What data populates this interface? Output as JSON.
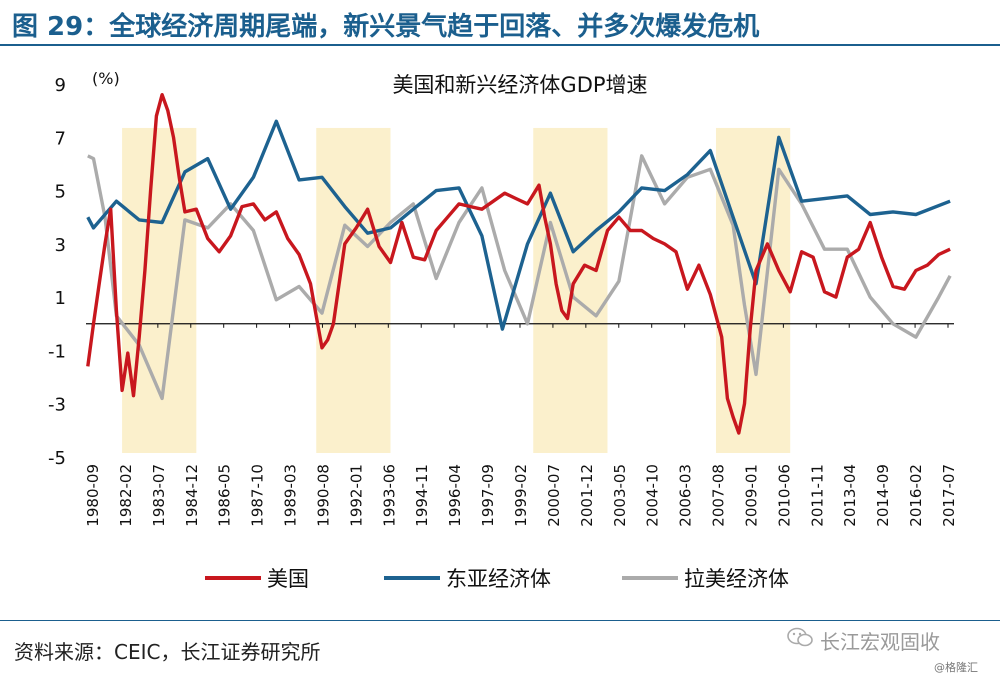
{
  "figure": {
    "title": "图 29：全球经济周期尾端，新兴景气趋于回落、并多次爆发危机",
    "source": "资料来源：CEIC，长江证券研究所",
    "watermark": "长江宏观固收",
    "watermark_sub": "@格隆汇"
  },
  "colors": {
    "title": "#1b5f8e",
    "us": "#c8171e",
    "east_asia": "#1d6290",
    "latam": "#ababab",
    "shade": "#fbf0cc"
  },
  "chart_data": {
    "type": "line",
    "title": "美国和新兴经济体GDP增速",
    "ylabel": "(%)",
    "ylim": [
      -5,
      9
    ],
    "yticks": [
      -5,
      -3,
      -1,
      1,
      3,
      5,
      7,
      9
    ],
    "xlim": [
      1980.67,
      2018.67
    ],
    "xticks": [
      "1980-09",
      "1982-02",
      "1983-07",
      "1984-12",
      "1986-05",
      "1987-10",
      "1989-03",
      "1990-08",
      "1992-01",
      "1993-06",
      "1994-11",
      "1996-04",
      "1997-09",
      "1999-02",
      "2000-07",
      "2001-12",
      "2003-05",
      "2004-10",
      "2006-03",
      "2007-08",
      "2009-01",
      "2010-06",
      "2011-11",
      "2013-04",
      "2014-09",
      "2016-02",
      "2017-07"
    ],
    "legend": {
      "position": "bottom"
    },
    "grid": false,
    "shaded_periods": [
      [
        1982.25,
        1985.5
      ],
      [
        1990.75,
        1994.0
      ],
      [
        2000.25,
        2003.5
      ],
      [
        2008.25,
        2011.5
      ]
    ],
    "series": [
      {
        "name": "美国",
        "color": "#c8171e",
        "points": [
          [
            1980.75,
            -1.6
          ],
          [
            1981.0,
            0.0
          ],
          [
            1981.25,
            1.5
          ],
          [
            1981.5,
            3.0
          ],
          [
            1981.75,
            4.3
          ],
          [
            1982.0,
            0.5
          ],
          [
            1982.25,
            -2.5
          ],
          [
            1982.5,
            -1.1
          ],
          [
            1982.75,
            -2.7
          ],
          [
            1983.0,
            -0.5
          ],
          [
            1983.25,
            2.0
          ],
          [
            1983.5,
            5.0
          ],
          [
            1983.75,
            7.8
          ],
          [
            1984.0,
            8.6
          ],
          [
            1984.25,
            8.0
          ],
          [
            1984.5,
            7.0
          ],
          [
            1984.75,
            5.5
          ],
          [
            1985.0,
            4.2
          ],
          [
            1985.5,
            4.3
          ],
          [
            1986.0,
            3.2
          ],
          [
            1986.5,
            2.7
          ],
          [
            1987.0,
            3.3
          ],
          [
            1987.5,
            4.4
          ],
          [
            1988.0,
            4.5
          ],
          [
            1988.5,
            3.9
          ],
          [
            1989.0,
            4.2
          ],
          [
            1989.5,
            3.2
          ],
          [
            1990.0,
            2.6
          ],
          [
            1990.5,
            1.5
          ],
          [
            1990.75,
            0.3
          ],
          [
            1991.0,
            -0.9
          ],
          [
            1991.25,
            -0.6
          ],
          [
            1991.5,
            0.0
          ],
          [
            1992.0,
            3.0
          ],
          [
            1992.5,
            3.6
          ],
          [
            1993.0,
            4.3
          ],
          [
            1993.5,
            2.9
          ],
          [
            1994.0,
            2.3
          ],
          [
            1994.5,
            3.8
          ],
          [
            1995.0,
            2.5
          ],
          [
            1995.5,
            2.4
          ],
          [
            1996.0,
            3.5
          ],
          [
            1996.5,
            4.0
          ],
          [
            1997.0,
            4.5
          ],
          [
            1997.5,
            4.4
          ],
          [
            1998.0,
            4.3
          ],
          [
            1998.5,
            4.6
          ],
          [
            1999.0,
            4.9
          ],
          [
            1999.5,
            4.7
          ],
          [
            2000.0,
            4.5
          ],
          [
            2000.5,
            5.2
          ],
          [
            2000.75,
            4.0
          ],
          [
            2001.0,
            3.0
          ],
          [
            2001.25,
            1.5
          ],
          [
            2001.5,
            0.5
          ],
          [
            2001.75,
            0.2
          ],
          [
            2002.0,
            1.5
          ],
          [
            2002.5,
            2.2
          ],
          [
            2003.0,
            2.0
          ],
          [
            2003.5,
            3.5
          ],
          [
            2004.0,
            4.0
          ],
          [
            2004.5,
            3.5
          ],
          [
            2005.0,
            3.5
          ],
          [
            2005.5,
            3.2
          ],
          [
            2006.0,
            3.0
          ],
          [
            2006.5,
            2.7
          ],
          [
            2007.0,
            1.3
          ],
          [
            2007.5,
            2.2
          ],
          [
            2008.0,
            1.1
          ],
          [
            2008.5,
            -0.5
          ],
          [
            2008.75,
            -2.8
          ],
          [
            2009.0,
            -3.5
          ],
          [
            2009.25,
            -4.1
          ],
          [
            2009.5,
            -3.0
          ],
          [
            2009.75,
            -0.2
          ],
          [
            2010.0,
            2.0
          ],
          [
            2010.5,
            3.0
          ],
          [
            2011.0,
            2.0
          ],
          [
            2011.5,
            1.2
          ],
          [
            2012.0,
            2.7
          ],
          [
            2012.5,
            2.5
          ],
          [
            2013.0,
            1.2
          ],
          [
            2013.5,
            1.0
          ],
          [
            2014.0,
            2.5
          ],
          [
            2014.5,
            2.8
          ],
          [
            2015.0,
            3.8
          ],
          [
            2015.5,
            2.5
          ],
          [
            2016.0,
            1.4
          ],
          [
            2016.5,
            1.3
          ],
          [
            2017.0,
            2.0
          ],
          [
            2017.5,
            2.2
          ],
          [
            2018.0,
            2.6
          ],
          [
            2018.5,
            2.8
          ]
        ]
      },
      {
        "name": "东亚经济体",
        "color": "#1d6290",
        "points": [
          [
            1980.75,
            4.0
          ],
          [
            1981.0,
            3.6
          ],
          [
            1982.0,
            4.6
          ],
          [
            1983.0,
            3.9
          ],
          [
            1984.0,
            3.8
          ],
          [
            1985.0,
            5.7
          ],
          [
            1986.0,
            6.2
          ],
          [
            1987.0,
            4.3
          ],
          [
            1988.0,
            5.5
          ],
          [
            1989.0,
            7.6
          ],
          [
            1990.0,
            5.4
          ],
          [
            1991.0,
            5.5
          ],
          [
            1992.0,
            4.4
          ],
          [
            1993.0,
            3.4
          ],
          [
            1994.0,
            3.6
          ],
          [
            1995.0,
            4.3
          ],
          [
            1996.0,
            5.0
          ],
          [
            1997.0,
            5.1
          ],
          [
            1998.0,
            3.3
          ],
          [
            1998.9,
            -0.2
          ],
          [
            2000.0,
            3.0
          ],
          [
            2001.0,
            4.9
          ],
          [
            2002.0,
            2.7
          ],
          [
            2003.0,
            3.5
          ],
          [
            2004.0,
            4.2
          ],
          [
            2005.0,
            5.1
          ],
          [
            2006.0,
            5.0
          ],
          [
            2007.0,
            5.6
          ],
          [
            2008.0,
            6.5
          ],
          [
            2009.0,
            4.0
          ],
          [
            2010.0,
            1.5
          ],
          [
            2011.0,
            7.0
          ],
          [
            2012.0,
            4.6
          ],
          [
            2013.0,
            4.7
          ],
          [
            2014.0,
            4.8
          ],
          [
            2015.0,
            4.1
          ],
          [
            2016.0,
            4.2
          ],
          [
            2017.0,
            4.1
          ],
          [
            2018.5,
            4.6
          ]
        ]
      },
      {
        "name": "拉美经济体",
        "color": "#ababab",
        "points": [
          [
            1980.75,
            6.3
          ],
          [
            1981.0,
            6.2
          ],
          [
            1981.5,
            4.0
          ],
          [
            1982.0,
            0.3
          ],
          [
            1983.0,
            -0.8
          ],
          [
            1984.0,
            -2.8
          ],
          [
            1985.0,
            3.9
          ],
          [
            1986.0,
            3.6
          ],
          [
            1987.0,
            4.5
          ],
          [
            1988.0,
            3.5
          ],
          [
            1989.0,
            0.9
          ],
          [
            1990.0,
            1.4
          ],
          [
            1991.0,
            0.4
          ],
          [
            1992.0,
            3.7
          ],
          [
            1993.0,
            2.9
          ],
          [
            1994.0,
            3.8
          ],
          [
            1995.0,
            4.5
          ],
          [
            1996.0,
            1.7
          ],
          [
            1997.0,
            3.8
          ],
          [
            1998.0,
            5.1
          ],
          [
            1999.0,
            2.0
          ],
          [
            2000.0,
            0.0
          ],
          [
            2001.0,
            3.8
          ],
          [
            2002.0,
            1.0
          ],
          [
            2003.0,
            0.3
          ],
          [
            2004.0,
            1.6
          ],
          [
            2005.0,
            6.3
          ],
          [
            2006.0,
            4.5
          ],
          [
            2007.0,
            5.5
          ],
          [
            2008.0,
            5.8
          ],
          [
            2009.0,
            3.7
          ],
          [
            2009.5,
            0.7
          ],
          [
            2010.0,
            -1.9
          ],
          [
            2011.0,
            5.8
          ],
          [
            2012.0,
            4.5
          ],
          [
            2013.0,
            2.8
          ],
          [
            2014.0,
            2.8
          ],
          [
            2015.0,
            1.0
          ],
          [
            2016.0,
            0.0
          ],
          [
            2017.0,
            -0.5
          ],
          [
            2018.0,
            1.0
          ],
          [
            2018.5,
            1.8
          ]
        ]
      }
    ]
  }
}
